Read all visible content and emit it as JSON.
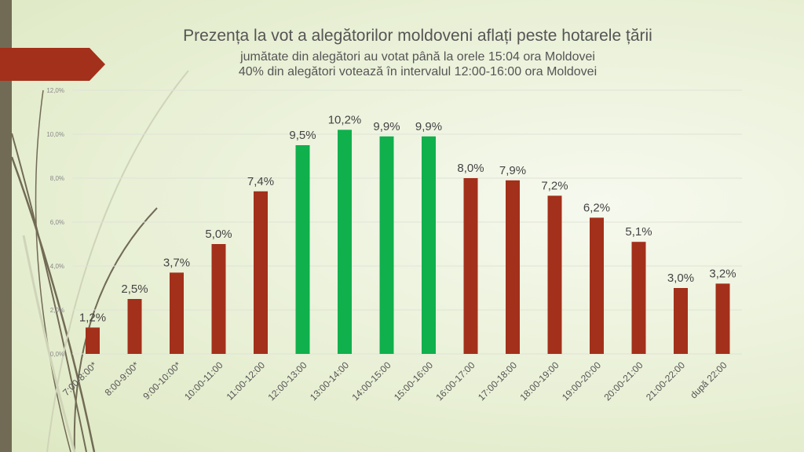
{
  "chart_data": {
    "type": "bar",
    "title": "Prezența la vot a alegătorilor moldoveni aflați peste hotarele țării",
    "subtitles": [
      "jumătate din alegători au votat până la orele 15:04 ora Moldovei",
      "40% din alegători votează în intervalul 12:00-16:00 ora Moldovei"
    ],
    "categories": [
      "7:00-8:00*",
      "8:00-9:00*",
      "9:00-10:00*",
      "10:00-11:00",
      "11:00-12:00",
      "12:00-13:00",
      "13:00-14:00",
      "14:00-15:00",
      "15:00-16:00",
      "16:00-17:00",
      "17:00-18:00",
      "18:00-19:00",
      "19:00-20:00",
      "20:00-21:00",
      "21:00-22:00",
      "după 22:00"
    ],
    "values": [
      1.2,
      2.5,
      3.7,
      5.0,
      7.4,
      9.5,
      10.2,
      9.9,
      9.9,
      8.0,
      7.9,
      7.2,
      6.2,
      5.1,
      3.0,
      3.2
    ],
    "data_labels": [
      "1,2%",
      "2,5%",
      "3,7%",
      "5,0%",
      "7,4%",
      "9,5%",
      "10,2%",
      "9,9%",
      "9,9%",
      "8,0%",
      "7,9%",
      "7,2%",
      "6,2%",
      "5,1%",
      "3,0%",
      "3,2%"
    ],
    "highlighted": [
      5,
      6,
      7,
      8
    ],
    "y_ticks": [
      "0,0%",
      "2,0%",
      "4,0%",
      "6,0%",
      "8,0%",
      "10,0%",
      "12,0%"
    ],
    "ylim": [
      0,
      12
    ],
    "grid": true,
    "colors": {
      "default": "#a3301a",
      "highlight": "#10b04d"
    }
  }
}
